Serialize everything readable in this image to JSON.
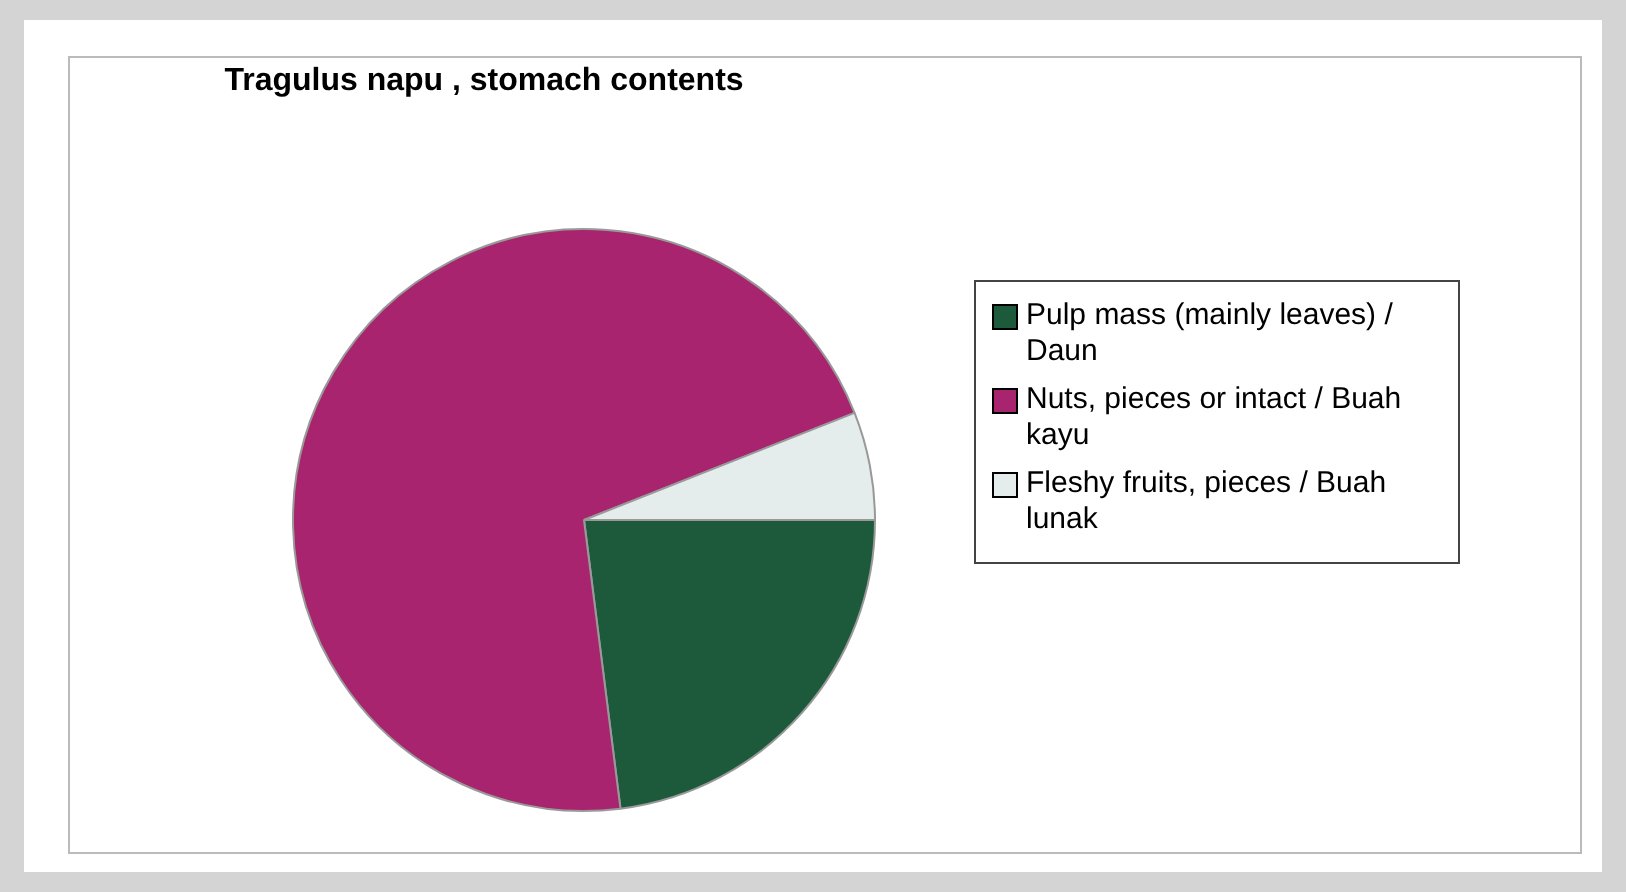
{
  "chart_data": {
    "type": "pie",
    "title": "Tragulus napu , stomach contents",
    "categories": [
      "Pulp mass (mainly leaves) / Daun",
      "Nuts, pieces or intact / Buah kayu",
      "Fleshy fruits, pieces / Buah lunak"
    ],
    "values": [
      23,
      71,
      6
    ],
    "colors": [
      "#1d5a3c",
      "#a8246e",
      "#e4ecec"
    ],
    "legend": "right"
  }
}
